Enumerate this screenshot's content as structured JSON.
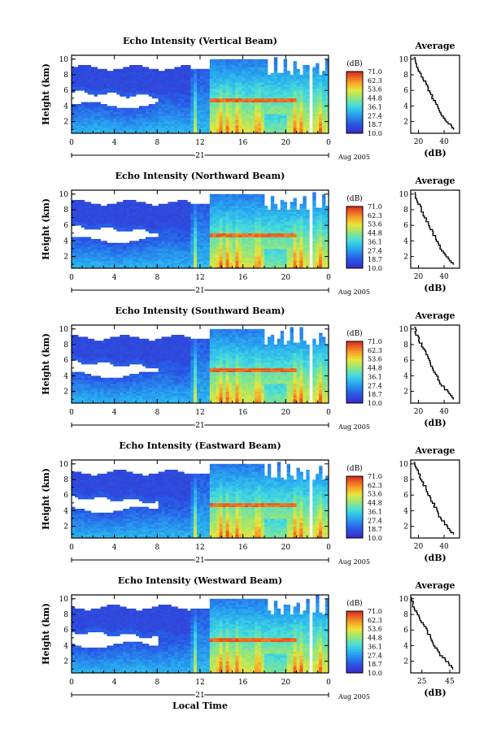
{
  "figure": {
    "xlabel_bottom": "Local Time",
    "day_label": "21",
    "date_label": "Aug 2005",
    "colorbar_unit": "(dB)",
    "colorbar_ticks": [
      "71.0",
      "62.3",
      "53.6",
      "44.8",
      "36.1",
      "27.4",
      "18.7",
      "10.0"
    ],
    "average_xlabel": "(dB)"
  },
  "chart_data": [
    {
      "type": "heatmap",
      "title": "Echo Intensity (Vertical Beam)",
      "ylabel": "Height (km)",
      "x_ticks": [
        "0",
        "4",
        "8",
        "12",
        "16",
        "20",
        "0"
      ],
      "xlim": [
        0,
        24
      ],
      "ylim": [
        0.5,
        10.5
      ],
      "y_ticks": [
        "2",
        "4",
        "6",
        "8",
        "10"
      ],
      "z_range": [
        10.0,
        71.0
      ],
      "z_unit": "dB",
      "average_panel": {
        "title": "Average",
        "xlabel": "(dB)",
        "x_ticks": [
          "20",
          "40"
        ],
        "xlim": [
          14,
          52
        ]
      }
    },
    {
      "type": "heatmap",
      "title": "Echo Intensity (Northward Beam)",
      "ylabel": "Height (km)",
      "x_ticks": [
        "0",
        "4",
        "8",
        "12",
        "16",
        "20",
        "0"
      ],
      "xlim": [
        0,
        24
      ],
      "ylim": [
        0.5,
        10.5
      ],
      "y_ticks": [
        "2",
        "4",
        "6",
        "8",
        "10"
      ],
      "z_range": [
        10.0,
        71.0
      ],
      "z_unit": "dB",
      "average_panel": {
        "title": "Average",
        "xlabel": "(dB)",
        "x_ticks": [
          "20",
          "40"
        ],
        "xlim": [
          14,
          52
        ]
      }
    },
    {
      "type": "heatmap",
      "title": "Echo Intensity (Southward Beam)",
      "ylabel": "Height (km)",
      "x_ticks": [
        "0",
        "4",
        "8",
        "12",
        "16",
        "20",
        "0"
      ],
      "xlim": [
        0,
        24
      ],
      "ylim": [
        0.5,
        10.5
      ],
      "y_ticks": [
        "2",
        "4",
        "6",
        "8",
        "10"
      ],
      "z_range": [
        10.0,
        71.0
      ],
      "z_unit": "dB",
      "average_panel": {
        "title": "Average",
        "xlabel": "(dB)",
        "x_ticks": [
          "20",
          "40"
        ],
        "xlim": [
          14,
          52
        ]
      }
    },
    {
      "type": "heatmap",
      "title": "Echo Intensity (Eastward Beam)",
      "ylabel": "Height (km)",
      "x_ticks": [
        "0",
        "4",
        "8",
        "12",
        "16",
        "20",
        "0"
      ],
      "xlim": [
        0,
        24
      ],
      "ylim": [
        0.5,
        10.5
      ],
      "y_ticks": [
        "2",
        "4",
        "6",
        "8",
        "10"
      ],
      "z_range": [
        10.0,
        71.0
      ],
      "z_unit": "dB",
      "average_panel": {
        "title": "Average",
        "xlabel": "(dB)",
        "x_ticks": [
          "20",
          "40"
        ],
        "xlim": [
          14,
          52
        ]
      }
    },
    {
      "type": "heatmap",
      "title": "Echo Intensity (Westward Beam)",
      "ylabel": "Height (km)",
      "x_ticks": [
        "0",
        "4",
        "8",
        "12",
        "16",
        "20",
        "0"
      ],
      "xlim": [
        0,
        24
      ],
      "ylim": [
        0.5,
        10.5
      ],
      "y_ticks": [
        "2",
        "4",
        "6",
        "8",
        "10"
      ],
      "z_range": [
        10.0,
        71.0
      ],
      "z_unit": "dB",
      "average_panel": {
        "title": "Average",
        "xlabel": "(dB)",
        "x_ticks": [
          "25",
          "45"
        ],
        "xlim": [
          17,
          52
        ]
      }
    }
  ],
  "average_profile": {
    "height_km": [
      1,
      2,
      3,
      4,
      5,
      6,
      7,
      8,
      9,
      10
    ],
    "echo_db": [
      47,
      42,
      37,
      34,
      31,
      28,
      25,
      22,
      19,
      17
    ]
  }
}
